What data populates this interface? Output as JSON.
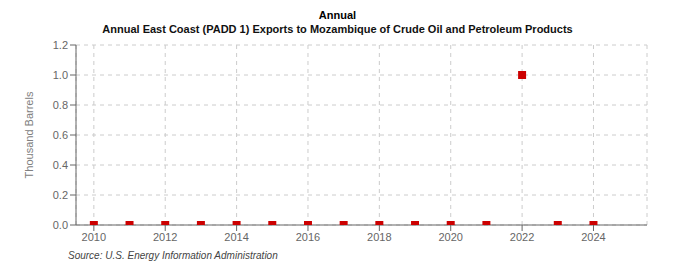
{
  "chart_data": {
    "type": "scatter",
    "title": "Annual East Coast (PADD 1) Exports to Mozambique of Crude Oil and Petroleum Products",
    "annotations": [
      "Annual",
      "Source: U.S. Energy Information Administration"
    ],
    "y_label": "Thousand Barrels",
    "x": [
      2010,
      2011,
      2012,
      2013,
      2014,
      2015,
      2016,
      2017,
      2018,
      2019,
      2020,
      2021,
      2022,
      2023,
      2024
    ],
    "values": [
      0,
      0,
      0,
      0,
      0,
      0,
      0,
      0,
      0,
      0,
      0,
      0,
      1.0,
      0,
      0
    ],
    "color": "#cc0000",
    "marker": "square",
    "xlim": [
      2009.5,
      2025.5
    ],
    "ylim": [
      0.0,
      1.2
    ],
    "xticks": [
      2010,
      2012,
      2014,
      2016,
      2018,
      2020,
      2022,
      2024
    ],
    "yticks": [
      {
        "value": 0.0,
        "label": "0.0"
      },
      0.2,
      0.4,
      0.6,
      0.8,
      {
        "value": 1.0,
        "label": "1.0"
      },
      1.2
    ],
    "grid": true
  }
}
